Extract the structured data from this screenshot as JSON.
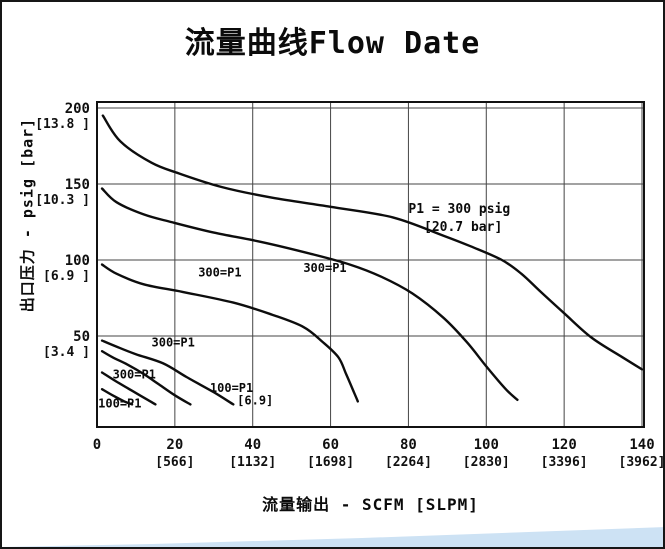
{
  "page": {
    "title": "流量曲线Flow Date"
  },
  "decor": {
    "bottom_band_color": "#cde2f4"
  },
  "chart_data": {
    "type": "line",
    "title": "流量曲线Flow Date",
    "xlabel": "流量输出 - SCFM [SLPM]",
    "ylabel": "出口压力 - psig [bar]",
    "xlim": [
      0,
      140
    ],
    "ylim": [
      0,
      210
    ],
    "grid": true,
    "line_color": "#0d0d0d",
    "grid_color": "#454545",
    "x_ticks": [
      {
        "value": 0,
        "label": "0",
        "sub": ""
      },
      {
        "value": 20,
        "label": "20",
        "sub": "[566]"
      },
      {
        "value": 40,
        "label": "40",
        "sub": "[1132]"
      },
      {
        "value": 60,
        "label": "60",
        "sub": "[1698]"
      },
      {
        "value": 80,
        "label": "80",
        "sub": "[2264]"
      },
      {
        "value": 100,
        "label": "100",
        "sub": "[2830]"
      },
      {
        "value": 120,
        "label": "120",
        "sub": "[3396]"
      },
      {
        "value": 140,
        "label": "140",
        "sub": "[3962]"
      }
    ],
    "y_ticks": [
      {
        "value": 200,
        "label": "200",
        "sub": "[13.8 ]"
      },
      {
        "value": 150,
        "label": "150",
        "sub": "[10.3 ]"
      },
      {
        "value": 100,
        "label": "100",
        "sub": "[6.9 ]"
      },
      {
        "value": 50,
        "label": "50",
        "sub": "[3.4 ]"
      }
    ],
    "series": [
      {
        "name": "set-200-p1-300",
        "points": [
          [
            1.5,
            195
          ],
          [
            6,
            178
          ],
          [
            14,
            164
          ],
          [
            21,
            157
          ],
          [
            32,
            148
          ],
          [
            45,
            141
          ],
          [
            60,
            135
          ],
          [
            76,
            128
          ],
          [
            89,
            116
          ],
          [
            96,
            109
          ],
          [
            104,
            100
          ],
          [
            109,
            91
          ],
          [
            114,
            79
          ],
          [
            120,
            65
          ],
          [
            127,
            49
          ],
          [
            135,
            36
          ],
          [
            140,
            28
          ]
        ]
      },
      {
        "name": "set-150-p1-300",
        "points": [
          [
            1.3,
            147
          ],
          [
            5,
            138
          ],
          [
            12,
            130
          ],
          [
            19,
            125
          ],
          [
            30,
            118
          ],
          [
            42,
            112
          ],
          [
            55,
            104
          ],
          [
            65,
            97
          ],
          [
            73,
            89
          ],
          [
            81,
            78
          ],
          [
            89,
            62
          ],
          [
            95,
            46
          ],
          [
            100,
            30
          ],
          [
            105,
            15
          ],
          [
            108,
            8
          ]
        ]
      },
      {
        "name": "set-100-p1-300",
        "points": [
          [
            1.3,
            97
          ],
          [
            5,
            91
          ],
          [
            12,
            84
          ],
          [
            22,
            79
          ],
          [
            35,
            72
          ],
          [
            45,
            64
          ],
          [
            53,
            56
          ],
          [
            58,
            46
          ],
          [
            62,
            36
          ],
          [
            64,
            25
          ],
          [
            66,
            13
          ],
          [
            67,
            7
          ]
        ]
      },
      {
        "name": "set-50-p1-300",
        "points": [
          [
            1.3,
            47
          ],
          [
            5,
            43
          ],
          [
            10,
            38
          ],
          [
            17,
            32
          ],
          [
            23,
            23
          ],
          [
            30,
            13
          ],
          [
            35,
            5
          ]
        ]
      },
      {
        "name": "set-50-p1-100",
        "points": [
          [
            1.3,
            40
          ],
          [
            4,
            36
          ],
          [
            8,
            31
          ],
          [
            12,
            25
          ],
          [
            16,
            18
          ],
          [
            20,
            11
          ],
          [
            24,
            5
          ]
        ]
      },
      {
        "name": "set-25-p1-300",
        "points": [
          [
            1.3,
            26
          ],
          [
            5,
            20
          ],
          [
            9,
            14
          ],
          [
            13,
            8
          ],
          [
            15,
            5
          ]
        ]
      },
      {
        "name": "set-25-p1-100",
        "points": [
          [
            1.3,
            15
          ],
          [
            4,
            11
          ],
          [
            7,
            7
          ],
          [
            9,
            5
          ]
        ]
      }
    ],
    "annotations": [
      {
        "text": "P1 = 300 psig",
        "x": 80,
        "y": 131,
        "size": 13
      },
      {
        "text": "[20.7 bar]",
        "x": 84,
        "y": 119,
        "size": 13
      },
      {
        "text": "300=P1",
        "x": 26,
        "y": 89,
        "size": 12
      },
      {
        "text": "300=P1",
        "x": 53,
        "y": 92,
        "size": 12
      },
      {
        "text": "300=P1",
        "x": 14,
        "y": 43,
        "size": 12
      },
      {
        "text": "300=P1",
        "x": 4,
        "y": 22,
        "size": 12
      },
      {
        "text": "100=P1",
        "x": 29,
        "y": 13,
        "size": 12
      },
      {
        "text": "[6.9]",
        "x": 36,
        "y": 5,
        "size": 12
      },
      {
        "text": "100=P1",
        "x": 0.3,
        "y": 3,
        "size": 12
      }
    ]
  }
}
